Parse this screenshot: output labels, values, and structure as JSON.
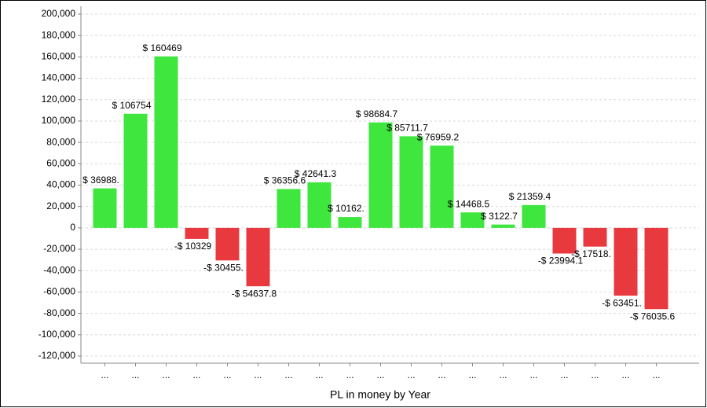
{
  "chart_data": {
    "type": "bar",
    "x_label": "PL in money by Year",
    "categories": [
      "...",
      "...",
      "...",
      "...",
      "...",
      "...",
      "...",
      "...",
      "...",
      "...",
      "...",
      "...",
      "...",
      "...",
      "...",
      "...",
      "...",
      "...",
      "..."
    ],
    "values": [
      36988,
      106754,
      160469,
      -10329,
      -30455,
      -54637.8,
      36356.6,
      42641.3,
      10162,
      98684.7,
      85711.7,
      76959.2,
      14468.5,
      3122.7,
      21359.4,
      -23994.1,
      -17518,
      -63451,
      -76035.6
    ],
    "value_labels": [
      "$ 36988.",
      "$ 106754",
      "$ 160469",
      "-$ 10329",
      "-$ 30455.",
      "-$ 54637.8",
      "$ 36356.6",
      "$ 42641.3",
      "$ 10162.",
      "$ 98684.7",
      "$ 85711.7",
      "$ 76959.2",
      "$ 14468.5",
      "$ 3122.7",
      "$ 21359.4",
      "-$ 23994.1",
      "-$ 17518.",
      "-$ 63451.",
      "-$ 76035.6"
    ],
    "color_positive": "#3ee63e",
    "color_negative": "#e83a3e",
    "ylim": [
      -120000,
      200000
    ],
    "yticks": [
      {
        "value": -120000,
        "label": "-120,000"
      },
      {
        "value": -100000,
        "label": "-100,000"
      },
      {
        "value": -80000,
        "label": "-80,000"
      },
      {
        "value": -60000,
        "label": "-60,000"
      },
      {
        "value": -40000,
        "label": "-40,000"
      },
      {
        "value": -20000,
        "label": "-20,000"
      },
      0,
      {
        "value": 20000,
        "label": "20,000"
      },
      {
        "value": 40000,
        "label": "40,000"
      },
      {
        "value": 60000,
        "label": "60,000"
      },
      {
        "value": 80000,
        "label": "80,000"
      },
      {
        "value": 100000,
        "label": "100,000"
      },
      {
        "value": 120000,
        "label": "120,000"
      },
      {
        "value": 140000,
        "label": "140,000"
      },
      {
        "value": 160000,
        "label": "160,000"
      },
      {
        "value": 180000,
        "label": "180,000"
      },
      {
        "value": 200000,
        "label": "200,000"
      }
    ],
    "grid": true
  }
}
